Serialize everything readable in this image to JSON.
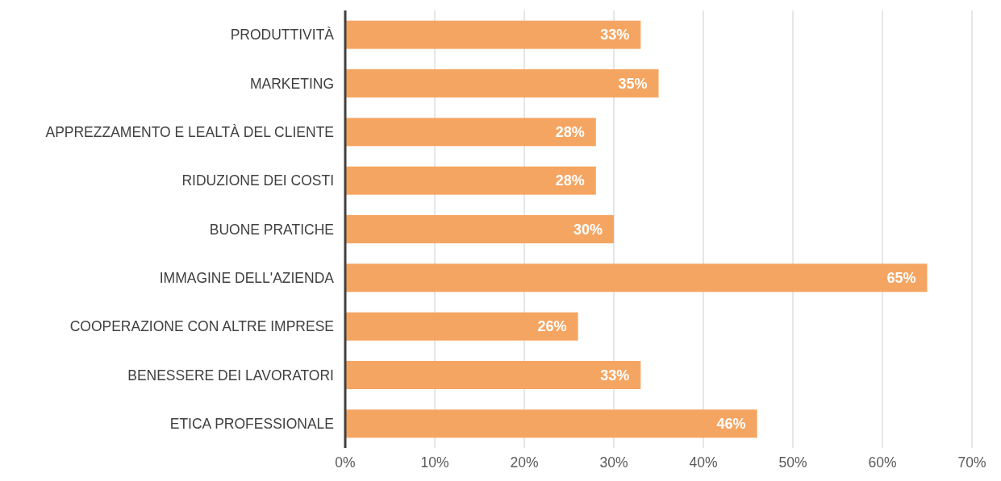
{
  "chart_data": {
    "type": "bar",
    "orientation": "horizontal",
    "categories": [
      "PRODUTTIVITÀ",
      "MARKETING",
      "APPREZZAMENTO E LEALTÀ DEL CLIENTE",
      "RIDUZIONE DEI COSTI",
      "BUONE PRATICHE",
      "IMMAGINE DELL'AZIENDA",
      "COOPERAZIONE CON ALTRE IMPRESE",
      "BENESSERE DEI LAVORATORI",
      "ETICA PROFESSIONALE"
    ],
    "values": [
      33,
      35,
      28,
      28,
      30,
      65,
      26,
      33,
      46
    ],
    "value_labels": [
      "33%",
      "35%",
      "28%",
      "28%",
      "30%",
      "65%",
      "26%",
      "33%",
      "46%"
    ],
    "color": "#f5a562",
    "xlim": [
      0,
      70
    ],
    "xticks": [
      {
        "value": 0,
        "label": "0%"
      },
      {
        "value": 10,
        "label": "10%"
      },
      {
        "value": 20,
        "label": "20%"
      },
      {
        "value": 30,
        "label": "30%"
      },
      {
        "value": 40,
        "label": "40%"
      },
      {
        "value": 50,
        "label": "50%"
      },
      {
        "value": 60,
        "label": "60%"
      },
      {
        "value": 70,
        "label": "70%"
      }
    ],
    "grid": "x"
  }
}
